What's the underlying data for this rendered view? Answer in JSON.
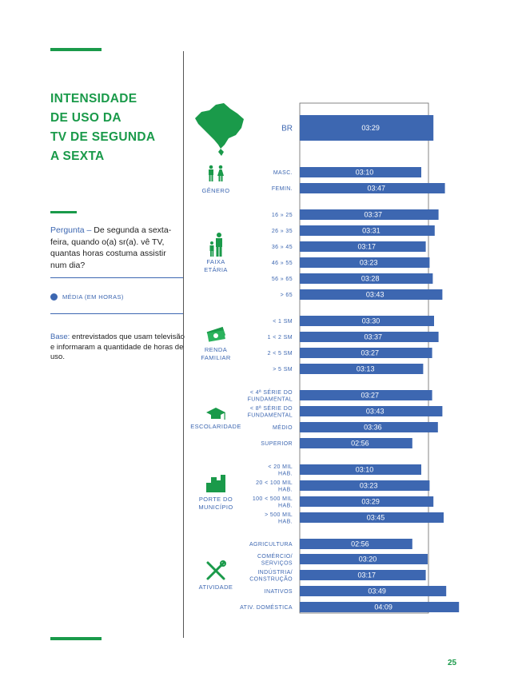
{
  "title": "INTENSIDADE\nDE USO DA\nTV DE SEGUNDA\nA SEXTA",
  "question": {
    "label": "Pergunta –",
    "text": " De segunda a sexta-feira, quando o(a) sr(a). vê TV, quantas horas costuma assistir num dia?"
  },
  "legend": {
    "label": "MÉDIA (EM HORAS)"
  },
  "base": {
    "label": "Base:",
    "text": " entrevistados que usam televisão e informaram a quantidade de horas de uso."
  },
  "page_number": "25",
  "colors": {
    "accent_green": "#1a9a4a",
    "bar_blue": "#3d67b1"
  },
  "chart_data": {
    "type": "bar",
    "orientation": "horizontal",
    "value_unit": "hours (hh:mm)",
    "xlim_minutes": [
      0,
      270
    ],
    "groups": [
      {
        "name": "",
        "icon": "brazil-map-icon",
        "items": [
          {
            "label": "BR",
            "value": "03:29",
            "minutes": 209
          }
        ]
      },
      {
        "name": "GÊNERO",
        "icon": "gender-icon",
        "items": [
          {
            "label": "MASC.",
            "value": "03:10",
            "minutes": 190
          },
          {
            "label": "FEMIN.",
            "value": "03:47",
            "minutes": 227
          }
        ]
      },
      {
        "name": "FAIXA\nETÁRIA",
        "icon": "age-icon",
        "items": [
          {
            "label": "16 » 25",
            "value": "03:37",
            "minutes": 217
          },
          {
            "label": "26 » 35",
            "value": "03:31",
            "minutes": 211
          },
          {
            "label": "36 » 45",
            "value": "03:17",
            "minutes": 197
          },
          {
            "label": "46 » 55",
            "value": "03:23",
            "minutes": 203
          },
          {
            "label": "56 » 65",
            "value": "03:28",
            "minutes": 208
          },
          {
            "label": "> 65",
            "value": "03:43",
            "minutes": 223
          }
        ]
      },
      {
        "name": "RENDA\nFAMILIAR",
        "icon": "money-icon",
        "items": [
          {
            "label": "< 1 SM",
            "value": "03:30",
            "minutes": 210
          },
          {
            "label": "1 < 2 SM",
            "value": "03:37",
            "minutes": 217
          },
          {
            "label": "2 < 5 SM",
            "value": "03:27",
            "minutes": 207
          },
          {
            "label": "> 5 SM",
            "value": "03:13",
            "minutes": 193
          }
        ]
      },
      {
        "name": "ESCOLARIDADE",
        "icon": "graduation-cap-icon",
        "items": [
          {
            "label": "< 4ª SÉRIE DO\nFUNDAMENTAL",
            "value": "03:27",
            "minutes": 207
          },
          {
            "label": "< 8ª SÉRIE DO\nFUNDAMENTAL",
            "value": "03:43",
            "minutes": 223
          },
          {
            "label": "MÉDIO",
            "value": "03:36",
            "minutes": 216
          },
          {
            "label": "SUPERIOR",
            "value": "02:56",
            "minutes": 176
          }
        ]
      },
      {
        "name": "PORTE DO\nMUNICÍPIO",
        "icon": "city-icon",
        "items": [
          {
            "label": "< 20 MIL\nHAB.",
            "value": "03:10",
            "minutes": 190
          },
          {
            "label": "20 < 100 MIL\nHAB.",
            "value": "03:23",
            "minutes": 203
          },
          {
            "label": "100 < 500 MIL\nHAB.",
            "value": "03:29",
            "minutes": 209
          },
          {
            "label": "> 500 MIL\nHAB.",
            "value": "03:45",
            "minutes": 225
          }
        ]
      },
      {
        "name": "ATIVIDADE",
        "icon": "tools-icon",
        "items": [
          {
            "label": "AGRICULTURA",
            "value": "02:56",
            "minutes": 176
          },
          {
            "label": "COMÉRCIO/\nSERVIÇOS",
            "value": "03:20",
            "minutes": 200
          },
          {
            "label": "INDÚSTRIA/\nCONSTRUÇÃO",
            "value": "03:17",
            "minutes": 197
          },
          {
            "label": "INATIVOS",
            "value": "03:49",
            "minutes": 229
          },
          {
            "label": "ATIV. DOMÉSTICA",
            "value": "04:09",
            "minutes": 249
          }
        ]
      }
    ]
  }
}
